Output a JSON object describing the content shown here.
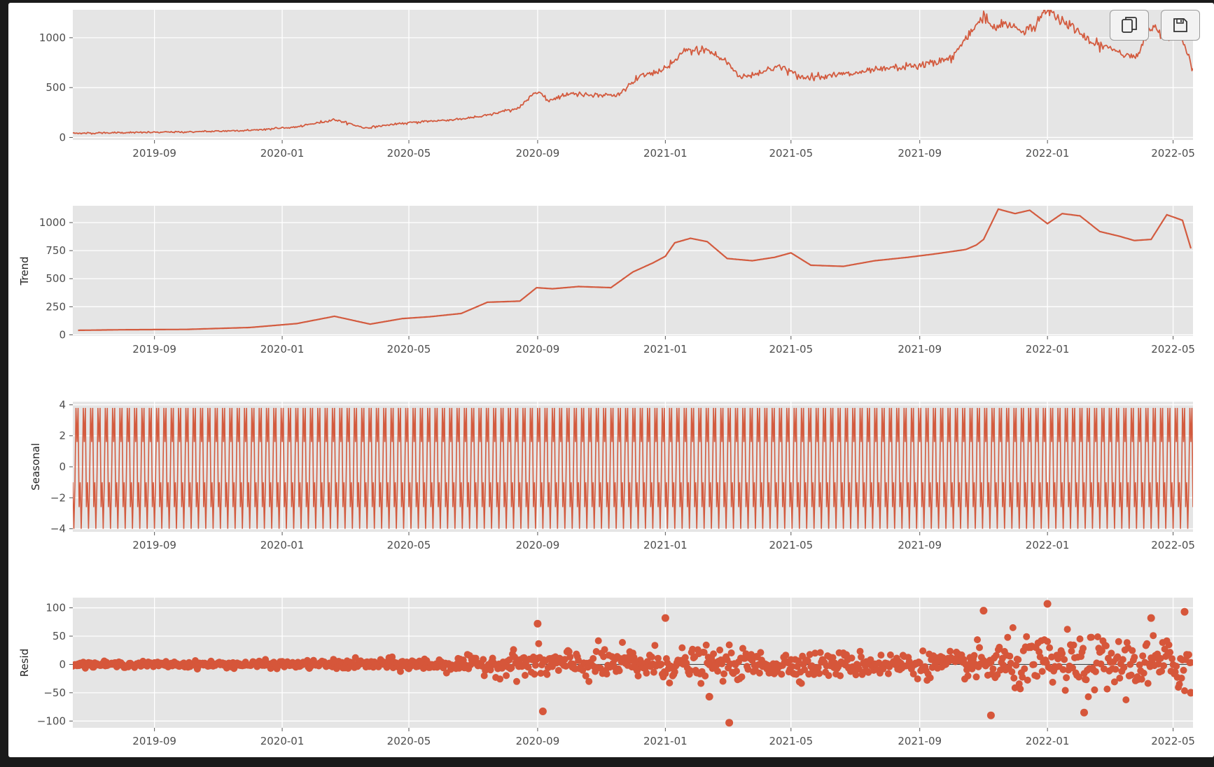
{
  "toolbar": {
    "copy_icon": "copy-icon",
    "save_icon": "save-icon"
  },
  "style": {
    "line_color": "#d35b3f",
    "marker_color": "#d6563a",
    "panel_bg": "#e5e5e5",
    "grid_color": "#ffffff"
  },
  "chart_data": [
    {
      "type": "line",
      "panel": "observed",
      "ylabel": "",
      "ylim": [
        -25,
        1280
      ],
      "yticks": [
        0,
        500,
        1000
      ],
      "xlim": [
        "2019-06-15",
        "2022-05-20"
      ],
      "xtick_labels": [
        "2019-09",
        "2020-01",
        "2020-05",
        "2020-09",
        "2021-01",
        "2021-05",
        "2021-09",
        "2022-01",
        "2022-05"
      ],
      "x": [
        "2019-06-15",
        "2019-08-01",
        "2019-10-01",
        "2019-12-01",
        "2020-01-15",
        "2020-02-20",
        "2020-03-20",
        "2020-04-15",
        "2020-05-15",
        "2020-06-15",
        "2020-07-10",
        "2020-08-15",
        "2020-09-01",
        "2020-09-10",
        "2020-10-01",
        "2020-11-15",
        "2020-12-10",
        "2021-01-01",
        "2021-01-20",
        "2021-02-10",
        "2021-03-01",
        "2021-03-15",
        "2021-04-01",
        "2021-04-20",
        "2021-05-10",
        "2021-06-01",
        "2021-07-01",
        "2021-08-01",
        "2021-09-01",
        "2021-10-01",
        "2021-11-01",
        "2021-11-10",
        "2021-11-25",
        "2021-12-10",
        "2021-12-25",
        "2022-01-01",
        "2022-01-10",
        "2022-01-25",
        "2022-02-10",
        "2022-03-01",
        "2022-03-15",
        "2022-03-28",
        "2022-04-10",
        "2022-04-25",
        "2022-05-08",
        "2022-05-20"
      ],
      "series": [
        {
          "values": [
            42,
            48,
            55,
            72,
            105,
            180,
            95,
            130,
            160,
            180,
            210,
            300,
            480,
            370,
            440,
            420,
            620,
            680,
            870,
            880,
            750,
            600,
            650,
            720,
            600,
            620,
            640,
            690,
            720,
            790,
            1230,
            1100,
            1140,
            1060,
            1170,
            1300,
            1200,
            1120,
            950,
            900,
            840,
            800,
            1120,
            1010,
            1040,
            700
          ]
        }
      ]
    },
    {
      "type": "line",
      "panel": "trend",
      "ylabel": "Trend",
      "ylim": [
        -10,
        1150
      ],
      "yticks": [
        0,
        250,
        500,
        750,
        1000
      ],
      "xlim": [
        "2019-06-15",
        "2022-05-20"
      ],
      "xtick_labels": [
        "2019-09",
        "2020-01",
        "2020-05",
        "2020-09",
        "2021-01",
        "2021-05",
        "2021-09",
        "2022-01",
        "2022-05"
      ],
      "x": [
        "2019-06-20",
        "2019-08-01",
        "2019-10-01",
        "2019-12-01",
        "2020-01-15",
        "2020-02-20",
        "2020-03-25",
        "2020-04-25",
        "2020-05-20",
        "2020-06-20",
        "2020-07-15",
        "2020-08-15",
        "2020-08-31",
        "2020-09-15",
        "2020-10-10",
        "2020-11-10",
        "2020-12-01",
        "2020-12-20",
        "2021-01-01",
        "2021-01-10",
        "2021-01-25",
        "2021-02-10",
        "2021-03-01",
        "2021-03-25",
        "2021-04-15",
        "2021-05-01",
        "2021-05-20",
        "2021-06-20",
        "2021-07-20",
        "2021-08-20",
        "2021-09-15",
        "2021-10-15",
        "2021-10-25",
        "2021-11-01",
        "2021-11-15",
        "2021-12-01",
        "2021-12-15",
        "2022-01-01",
        "2022-01-15",
        "2022-02-01",
        "2022-02-20",
        "2022-03-10",
        "2022-03-25",
        "2022-04-10",
        "2022-04-25",
        "2022-05-10",
        "2022-05-18"
      ],
      "series": [
        {
          "values": [
            40,
            45,
            48,
            65,
            100,
            165,
            95,
            145,
            160,
            190,
            290,
            300,
            420,
            410,
            430,
            420,
            560,
            640,
            700,
            820,
            860,
            830,
            680,
            660,
            690,
            730,
            620,
            610,
            660,
            690,
            720,
            760,
            800,
            850,
            1120,
            1080,
            1110,
            990,
            1080,
            1060,
            920,
            880,
            840,
            850,
            1070,
            1020,
            770
          ]
        }
      ]
    },
    {
      "type": "line",
      "panel": "seasonal",
      "ylabel": "Seasonal",
      "ylim": [
        -4.2,
        4.2
      ],
      "yticks": [
        -4,
        -2,
        0,
        2,
        4
      ],
      "xlim": [
        "2019-06-15",
        "2022-05-20"
      ],
      "xtick_labels": [
        "2019-09",
        "2020-01",
        "2020-05",
        "2020-09",
        "2021-01",
        "2021-05",
        "2021-09",
        "2022-01",
        "2022-05"
      ],
      "period_days": 7,
      "start": "2019-06-15",
      "end": "2022-05-20",
      "pattern": [
        -1.0,
        -4.0,
        -1.2,
        3.8,
        1.6,
        3.8,
        -2.6
      ]
    },
    {
      "type": "scatter",
      "panel": "resid",
      "ylabel": "Resid",
      "ylim": [
        -112,
        118
      ],
      "yticks": [
        -100,
        -50,
        0,
        50,
        100
      ],
      "hline": 0,
      "xlim": [
        "2019-06-15",
        "2022-05-20"
      ],
      "xtick_labels": [
        "2019-09",
        "2020-01",
        "2020-05",
        "2020-09",
        "2021-01",
        "2021-05",
        "2021-09",
        "2022-01",
        "2022-05"
      ],
      "start": "2019-06-15",
      "end": "2022-05-18",
      "spread_dates": [
        "2019-06-15",
        "2020-01-15",
        "2020-07-01",
        "2020-08-15",
        "2020-12-01",
        "2021-06-01",
        "2021-10-15",
        "2021-11-15",
        "2022-05-20"
      ],
      "spread_values": [
        4,
        6,
        12,
        22,
        28,
        20,
        20,
        42,
        45
      ],
      "outliers": [
        {
          "x": "2020-09-01",
          "y": 72
        },
        {
          "x": "2020-09-06",
          "y": -83
        },
        {
          "x": "2021-01-01",
          "y": 82
        },
        {
          "x": "2021-03-03",
          "y": -103
        },
        {
          "x": "2021-02-12",
          "y": -57
        },
        {
          "x": "2021-11-01",
          "y": 95
        },
        {
          "x": "2021-11-08",
          "y": -90
        },
        {
          "x": "2022-01-01",
          "y": 107
        },
        {
          "x": "2022-02-05",
          "y": -85
        },
        {
          "x": "2022-04-10",
          "y": 82
        },
        {
          "x": "2022-05-12",
          "y": 93
        },
        {
          "x": "2022-05-18",
          "y": -50
        }
      ]
    }
  ]
}
